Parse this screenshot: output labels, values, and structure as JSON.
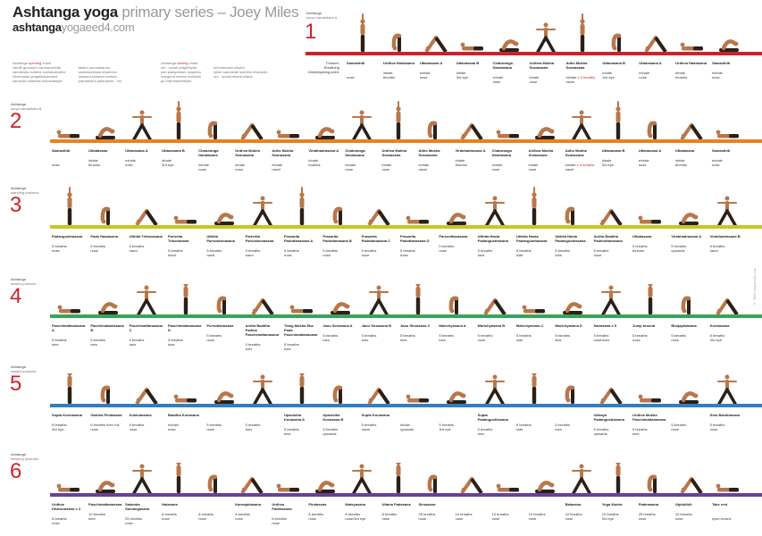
{
  "title": {
    "main": "Ashtanga yoga",
    "sub": "primary series",
    "author": "– Joey Miles"
  },
  "url": {
    "a": "ashtanga",
    "b": "yoga",
    "c": "eed4.com"
  },
  "opening_chant": {
    "label": "Ashtanga",
    "label_red": "opening",
    "label_tail": "chant",
    "lines": [
      "vande gurunam caranaravinde",
      "sandarsita svatma sukhavabodhe",
      "nihsreyase jangalikayamane",
      "samsara halahala mohasantyai",
      "abahu purusakaram",
      "sankhacakrasi dharinam",
      "sahasra sirasam svetam",
      "pranamami patanjalim · om"
    ]
  },
  "closing_chant": {
    "label": "Ashtanga",
    "label_red": "closing",
    "label_tail": "chant",
    "lines": [
      "om · svasti prajabhyah",
      "pari palayantam nyayena",
      "margena mahim mahisah",
      "go brahmanebhyah",
      "subhamastu nityam",
      "lokah samastah sukhino bhavantu",
      "om · shanti shanti shanti"
    ]
  },
  "copyright": "© 2009 yogaeed4.com",
  "sections": [
    {
      "number": "1",
      "heading": "Ashtanga",
      "sub": "surya namaskara A",
      "color": "#d0202c",
      "legend": {
        "a": "Posture:",
        "b": "Breathing",
        "c": "Drishti/gazing point:"
      },
      "poses": [
        {
          "n": "Samasthiti",
          "b": "",
          "d": "nose"
        },
        {
          "n": "Urdhva Hastasana",
          "b": "inhale",
          "d": "thumbs"
        },
        {
          "n": "Uttanasana A",
          "b": "exhale",
          "d": "nose"
        },
        {
          "n": "Uttanasana B",
          "b": "inhale",
          "d": "3rd eye"
        },
        {
          "n": "Chaturanga Dandasana",
          "b": "exhale",
          "d": "nose"
        },
        {
          "n": "Urdhva Mukha Svanasana",
          "b": "inhale",
          "d": "nose"
        },
        {
          "n": "Adho Mukha Svanasana",
          "b": "exhale",
          "r": "x 5 breaths",
          "d": "navel"
        },
        {
          "n": "Uttanasana B",
          "b": "inhale",
          "d": "3rd eye"
        },
        {
          "n": "Uttanasana A",
          "b": "exhale",
          "d": "nose"
        },
        {
          "n": "Urdhva Hastasana",
          "b": "inhale",
          "d": "thumbs"
        },
        {
          "n": "Samasthiti",
          "b": "exhale",
          "d": "nose"
        }
      ]
    },
    {
      "number": "2",
      "heading": "Ashtanga",
      "sub": "surya namaskara B",
      "color": "#e9821e",
      "poses": [
        {
          "n": "Samasthiti",
          "b": "",
          "d": "nose"
        },
        {
          "n": "Utkatasana",
          "b": "inhale",
          "d": "thumbs"
        },
        {
          "n": "Uttanasana A",
          "b": "exhale",
          "d": "nose"
        },
        {
          "n": "Uttanasana B",
          "b": "inhale",
          "d": "3rd eye"
        },
        {
          "n": "Chaturanga Dandasana",
          "b": "exhale",
          "d": "nose"
        },
        {
          "n": "Urdhva Mukha Svanasana",
          "b": "inhale",
          "d": "nose"
        },
        {
          "n": "Adho Mukha Svanasana",
          "b": "exhale",
          "d": "navel"
        },
        {
          "n": "Virabhadrasana A",
          "b": "inhale",
          "d": "thumbs"
        },
        {
          "n": "Chaturanga Dandasana",
          "b": "exhale",
          "d": "nose"
        },
        {
          "n": "Urdhva Mukha Svanasana",
          "b": "inhale",
          "d": "nose"
        },
        {
          "n": "Adho Mukha Svanasana",
          "b": "exhale",
          "d": "navel"
        },
        {
          "n": "Virabhadrasana A",
          "b": "inhale",
          "d": "thumbs"
        },
        {
          "n": "Chaturanga Dandasana",
          "b": "exhale",
          "d": "nose"
        },
        {
          "n": "Urdhva Mukha Svanasana",
          "b": "inhale",
          "d": "nose"
        },
        {
          "n": "Adho Mukha Svanasana",
          "b": "exhale",
          "r": "x 5 breaths",
          "d": "navel"
        },
        {
          "n": "Uttanasana B",
          "b": "inhale",
          "d": "3rd eye"
        },
        {
          "n": "Uttanasana A",
          "b": "exhale",
          "d": "nose"
        },
        {
          "n": "Utkatasana",
          "b": "inhale",
          "d": "thumbs"
        },
        {
          "n": "Samasthiti",
          "b": "exhale",
          "d": "nose"
        }
      ]
    },
    {
      "number": "3",
      "heading": "Ashtanga",
      "sub": "standing postures",
      "color": "#c9c623",
      "poses": [
        {
          "n": "Padangusthasana",
          "b": "5 breaths",
          "d": "nose"
        },
        {
          "n": "Pada Hastasana",
          "b": "5 breaths",
          "d": "nose"
        },
        {
          "n": "Utthita Trikonasana",
          "b": "5 breaths",
          "d": "hand"
        },
        {
          "n": "Parivrtta Trikonasana",
          "b": "5 breaths",
          "d": "hand"
        },
        {
          "n": "Utthita Parsvakonasana",
          "b": "5 breaths",
          "d": "hand"
        },
        {
          "n": "Parivrtta Parsvakonasana",
          "b": "5 breaths",
          "d": "hand"
        },
        {
          "n": "Prasarita Padottanasana A",
          "b": "5 breaths",
          "d": "nose"
        },
        {
          "n": "Prasarita Padottanasana B",
          "b": "5 breaths",
          "d": "nose"
        },
        {
          "n": "Prasarita Padottanasana C",
          "b": "5 breaths",
          "d": "nose"
        },
        {
          "n": "Prasarita Padottanasana D",
          "b": "5 breaths",
          "d": "nose"
        },
        {
          "n": "Parsvottanasana",
          "b": "5 breaths",
          "d": "nose"
        },
        {
          "n": "Utthita Hasta Padangusthasana",
          "b": "5 breaths",
          "d": "toes"
        },
        {
          "n": "Utthita Hasta Padangusthasana",
          "b": "5 breaths",
          "d": "side"
        },
        {
          "n": "Utthita Hasta Padangusthasana",
          "b": "5 breaths",
          "d": "toes"
        },
        {
          "n": "Ardha Baddha Padmottanasana",
          "b": "5 breaths",
          "d": "nose"
        },
        {
          "n": "Utkatasana",
          "b": "5 breaths",
          "d": "thumbs"
        },
        {
          "n": "Virabhadrasana A",
          "b": "5 breaths",
          "d": "upwards"
        },
        {
          "n": "Virabhadrasana B",
          "b": "5 breaths",
          "d": "hand"
        }
      ]
    },
    {
      "number": "4",
      "heading": "Ashtanga",
      "sub": "seated postures",
      "color": "#39a35a",
      "poses": [
        {
          "n": "Paschimattanasana A",
          "b": "5 breaths",
          "d": "toes"
        },
        {
          "n": "Paschimattanasana B",
          "b": "5 breaths",
          "d": "toes"
        },
        {
          "n": "Paschimattanasana C",
          "b": "5 breaths",
          "d": "toes"
        },
        {
          "n": "Paschimattanasana D",
          "b": "5 breaths",
          "d": "toes"
        },
        {
          "n": "Purvottanasana",
          "b": "5 breaths",
          "d": "nose"
        },
        {
          "n": "Ardha Baddha Padma Paschimattanasana",
          "b": "5 breaths",
          "d": "toes"
        },
        {
          "n": "Tiang Mukha Eka Pada Paschimattanasana",
          "b": "5 breaths",
          "d": "toes"
        },
        {
          "n": "Janu Sirsasana A",
          "b": "5 breaths",
          "d": "toes"
        },
        {
          "n": "Janu Sirsasana B",
          "b": "5 breaths",
          "d": "toes"
        },
        {
          "n": "Janu Sirsasana C",
          "b": "5 breaths",
          "d": "toes"
        },
        {
          "n": "Marichyasana A",
          "b": "5 breaths",
          "d": "toes"
        },
        {
          "n": "Marichyasana B",
          "b": "5 breaths",
          "d": "nose"
        },
        {
          "n": "Marichyasana C",
          "b": "5 breaths",
          "d": "side"
        },
        {
          "n": "Marichyasana D",
          "b": "5 breaths",
          "d": "side"
        },
        {
          "n": "Navasana x 5",
          "b": "5 breaths",
          "d": "nose/toes"
        },
        {
          "n": "Jump around",
          "b": "5 breaths",
          "d": "nose"
        },
        {
          "n": "Bhujapidasana",
          "b": "5 breaths",
          "d": "nose"
        },
        {
          "n": "Kurmasana",
          "b": "5 breaths",
          "d": "3rd eye"
        }
      ]
    },
    {
      "number": "5",
      "heading": "Ashtanga",
      "sub": "seated postures",
      "color": "#2f7fc1",
      "poses": [
        {
          "n": "Supta Kurmasana",
          "b": "5 breaths",
          "d": "3rd eye"
        },
        {
          "n": "Garbha Pindasana",
          "b": "5 breaths then roll",
          "d": "nose"
        },
        {
          "n": "Kukkutasana",
          "b": "5 breaths",
          "d": "nose"
        },
        {
          "n": "Baddha Konasana",
          "b": "exhale",
          "d": "nose"
        },
        {
          "n": "",
          "b": "5 breaths",
          "d": "nose"
        },
        {
          "n": "",
          "b": "5 breaths",
          "d": "toes"
        },
        {
          "n": "Upavistha Konasana A",
          "b": "5 breaths",
          "d": "toes"
        },
        {
          "n": "Upavistha Konasana B",
          "b": "5 breaths",
          "d": "upwards"
        },
        {
          "n": "Supta Konasana",
          "b": "5 breaths",
          "d": "navel"
        },
        {
          "n": "",
          "b": "inhale",
          "d": "upwards"
        },
        {
          "n": "",
          "b": "5 breaths",
          "d": "3rd eye"
        },
        {
          "n": "Supta Padangusthasana",
          "b": "5 breaths",
          "d": "toes"
        },
        {
          "n": "",
          "b": "5 breaths",
          "d": "side"
        },
        {
          "n": "",
          "b": "5 breaths",
          "d": "toes"
        },
        {
          "n": "Ubhaya Padangusthasana",
          "b": "5 breaths",
          "d": "upwards"
        },
        {
          "n": "Urdhva Mukha Paschimattanasana",
          "b": "5 breaths",
          "d": "toes"
        },
        {
          "n": "",
          "b": "5 breaths",
          "d": "nose"
        },
        {
          "n": "Setu Bandhasana",
          "b": "5 breaths",
          "d": "nose"
        }
      ]
    },
    {
      "number": "6",
      "heading": "Ashtanga",
      "sub": "finishing postures",
      "color": "#6a3f9a",
      "poses": [
        {
          "n": "Urdhva Dhanurasana x 3",
          "b": "5 breaths",
          "d": "nose"
        },
        {
          "n": "Paschimattanasana",
          "b": "10 breaths",
          "d": "toes"
        },
        {
          "n": "Salamba Sarvangasana",
          "b": "25 breaths",
          "d": "nose"
        },
        {
          "n": "Halasana",
          "b": "8 breaths",
          "d": "nose"
        },
        {
          "n": "",
          "b": "8 breaths",
          "d": "nose"
        },
        {
          "n": "Karnapidasana",
          "b": "8 breaths",
          "d": "nose"
        },
        {
          "n": "Urdhva Padmasana",
          "b": "8 breaths",
          "d": "nose"
        },
        {
          "n": "Pindasana",
          "b": "8 breaths",
          "d": "nose"
        },
        {
          "n": "Matsyasana",
          "b": "8 breaths",
          "d": "nose/3rd eye"
        },
        {
          "n": "Uttana Padasana",
          "b": "8 breaths",
          "d": "nose"
        },
        {
          "n": "Sirsasana",
          "b": "25 breaths",
          "d": "nose"
        },
        {
          "n": "",
          "b": "10 breaths",
          "d": "nose"
        },
        {
          "n": "",
          "b": "10 breaths",
          "d": "nose"
        },
        {
          "n": "",
          "b": "10 breaths",
          "d": "nose"
        },
        {
          "n": "Balasana",
          "b": "10 breaths",
          "d": "nose"
        },
        {
          "n": "Yoga Mudra",
          "b": "10 breaths",
          "d": "3rd eye"
        },
        {
          "n": "Padmasana",
          "b": "25 breaths",
          "d": "nose"
        },
        {
          "n": "Utplutihih",
          "b": "10 breaths",
          "d": "nose"
        },
        {
          "n": "Take rest",
          "b": "",
          "d": "eyes closed"
        }
      ]
    }
  ]
}
